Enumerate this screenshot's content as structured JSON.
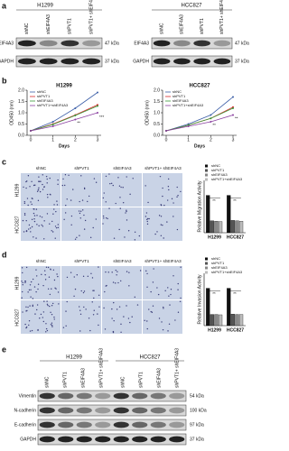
{
  "panels": {
    "a": {
      "label": "a",
      "groups": [
        {
          "title": "H1299",
          "columns": [
            "shNC",
            "shEIF4A3",
            "shPVT1",
            "shPVT1+ shEIF4A3"
          ],
          "rows": [
            "EIF4A3",
            "GAPDH"
          ],
          "sizes": [
            "47 kDa",
            "37 kDa"
          ]
        },
        {
          "title": "HCC827",
          "columns": [
            "shNC",
            "shEIF4A3",
            "shPVT1",
            "shPVT1+ shEIF4A3"
          ],
          "rows": [
            "EIF4A3",
            "GAPDH"
          ],
          "sizes": [
            "47 kDa",
            "37 kDa"
          ]
        }
      ]
    },
    "b": {
      "label": "b"
    },
    "c": {
      "label": "c",
      "columns": [
        "shNC",
        "shPVT1",
        "shEIF4A3",
        "shPVT1+ shEIF4A3"
      ],
      "rows": [
        "H1299",
        "HCC827"
      ]
    },
    "d": {
      "label": "d",
      "columns": [
        "shNC",
        "shPVT1",
        "shEIF4A3",
        "shPVT1+ shEIF4A3"
      ],
      "rows": [
        "H1299",
        "HCC827"
      ]
    },
    "e": {
      "label": "e",
      "groups": [
        {
          "title": "H1299",
          "columns": [
            "shNC",
            "shPVT1",
            "shEIF4A3",
            "shPVT1+ shEIF4A3"
          ]
        },
        {
          "title": "HCC827",
          "columns": [
            "shNC",
            "shPVT1",
            "shEIF4A3",
            "shPVT1+ shEIF4A3"
          ]
        }
      ],
      "rows": [
        "Vimentin",
        "N-cadherin",
        "E-cadherin",
        "GAPDH"
      ],
      "sizes": [
        "54 kDa",
        "100 kDa",
        "97 kDa",
        "37 kDa"
      ]
    }
  },
  "chart_data": [
    {
      "type": "line",
      "title": "H1299",
      "xlabel": "Days",
      "ylabel": "OD450 (nm)",
      "x": [
        0,
        1,
        2,
        3
      ],
      "xlim": [
        0,
        3
      ],
      "xticks": [
        0,
        1,
        2,
        3
      ],
      "ylim": [
        0,
        2
      ],
      "yticks": [
        {
          "value": 0,
          "label": "0.0"
        },
        {
          "value": 0.5,
          "label": "0.5"
        },
        {
          "value": 1,
          "label": "1.0"
        },
        {
          "value": 1.5,
          "label": "1.5"
        },
        {
          "value": 2,
          "label": "2.0"
        }
      ],
      "legend": "upper left",
      "series": [
        {
          "name": "shNC",
          "color": "#3d5fa8",
          "values": [
            0.2,
            0.6,
            1.2,
            1.9
          ]
        },
        {
          "name": "shPVT1",
          "color": "#d6282b",
          "values": [
            0.2,
            0.5,
            0.9,
            1.35
          ]
        },
        {
          "name": "shEIF4A3",
          "color": "#3a9a3a",
          "values": [
            0.2,
            0.48,
            0.88,
            1.3
          ]
        },
        {
          "name": "shPVT1+shEIF4A3",
          "color": "#8a3fa0",
          "values": [
            0.2,
            0.4,
            0.7,
            1.0
          ]
        }
      ],
      "annotations": [
        {
          "text": "**",
          "x": 2,
          "y": 0.55
        },
        {
          "text": "***",
          "x": 3,
          "y": 0.8
        }
      ]
    },
    {
      "type": "line",
      "title": "HCC827",
      "xlabel": "Days",
      "ylabel": "OD450 (nm)",
      "x": [
        0,
        1,
        2,
        3
      ],
      "xlim": [
        0,
        3
      ],
      "xticks": [
        0,
        1,
        2,
        3
      ],
      "ylim": [
        0,
        2
      ],
      "yticks": [
        {
          "value": 0,
          "label": "0.0"
        },
        {
          "value": 0.5,
          "label": "0.5"
        },
        {
          "value": 1,
          "label": "1.0"
        },
        {
          "value": 1.5,
          "label": "1.5"
        },
        {
          "value": 2,
          "label": "2.0"
        }
      ],
      "legend": "upper left",
      "series": [
        {
          "name": "shNC",
          "color": "#3d5fa8",
          "values": [
            0.2,
            0.5,
            0.9,
            1.7
          ]
        },
        {
          "name": "shPVT1",
          "color": "#d6282b",
          "values": [
            0.2,
            0.45,
            0.75,
            1.25
          ]
        },
        {
          "name": "shEIF4A3",
          "color": "#3a9a3a",
          "values": [
            0.2,
            0.45,
            0.75,
            1.2
          ]
        },
        {
          "name": "shPVT1+shEIF4A3",
          "color": "#8a3fa0",
          "values": [
            0.2,
            0.4,
            0.6,
            0.9
          ]
        }
      ],
      "annotations": [
        {
          "text": "**",
          "x": 2,
          "y": 0.45
        },
        {
          "text": "**",
          "x": 3,
          "y": 0.75
        }
      ]
    },
    {
      "type": "bar",
      "ylabel": "Relative Migration Activity",
      "categories": [
        "H1299",
        "HCC827"
      ],
      "ylim": [
        0,
        1.4
      ],
      "series": [
        {
          "name": "shNC",
          "color": "#111111",
          "values": [
            1,
            1
          ]
        },
        {
          "name": "shPVT1",
          "color": "#555555",
          "values": [
            0.32,
            0.33
          ]
        },
        {
          "name": "shEIF4A3",
          "color": "#888888",
          "values": [
            0.31,
            0.32
          ]
        },
        {
          "name": "shPVT1+shEIF4A3",
          "color": "#bbbbbb",
          "values": [
            0.3,
            0.31
          ]
        }
      ],
      "annotations": [
        "**",
        "**"
      ]
    },
    {
      "type": "bar",
      "ylabel": "Relative Invasion Activity",
      "categories": [
        "H1299",
        "HCC827"
      ],
      "ylim": [
        0,
        1.4
      ],
      "series": [
        {
          "name": "shNC",
          "color": "#111111",
          "values": [
            1,
            1
          ]
        },
        {
          "name": "shPVT1",
          "color": "#555555",
          "values": [
            0.3,
            0.31
          ]
        },
        {
          "name": "shEIF4A3",
          "color": "#888888",
          "values": [
            0.3,
            0.3
          ]
        },
        {
          "name": "shPVT1+shEIF4A3",
          "color": "#bbbbbb",
          "values": [
            0.29,
            0.3
          ]
        }
      ],
      "annotations": [
        "**",
        "**"
      ]
    }
  ]
}
